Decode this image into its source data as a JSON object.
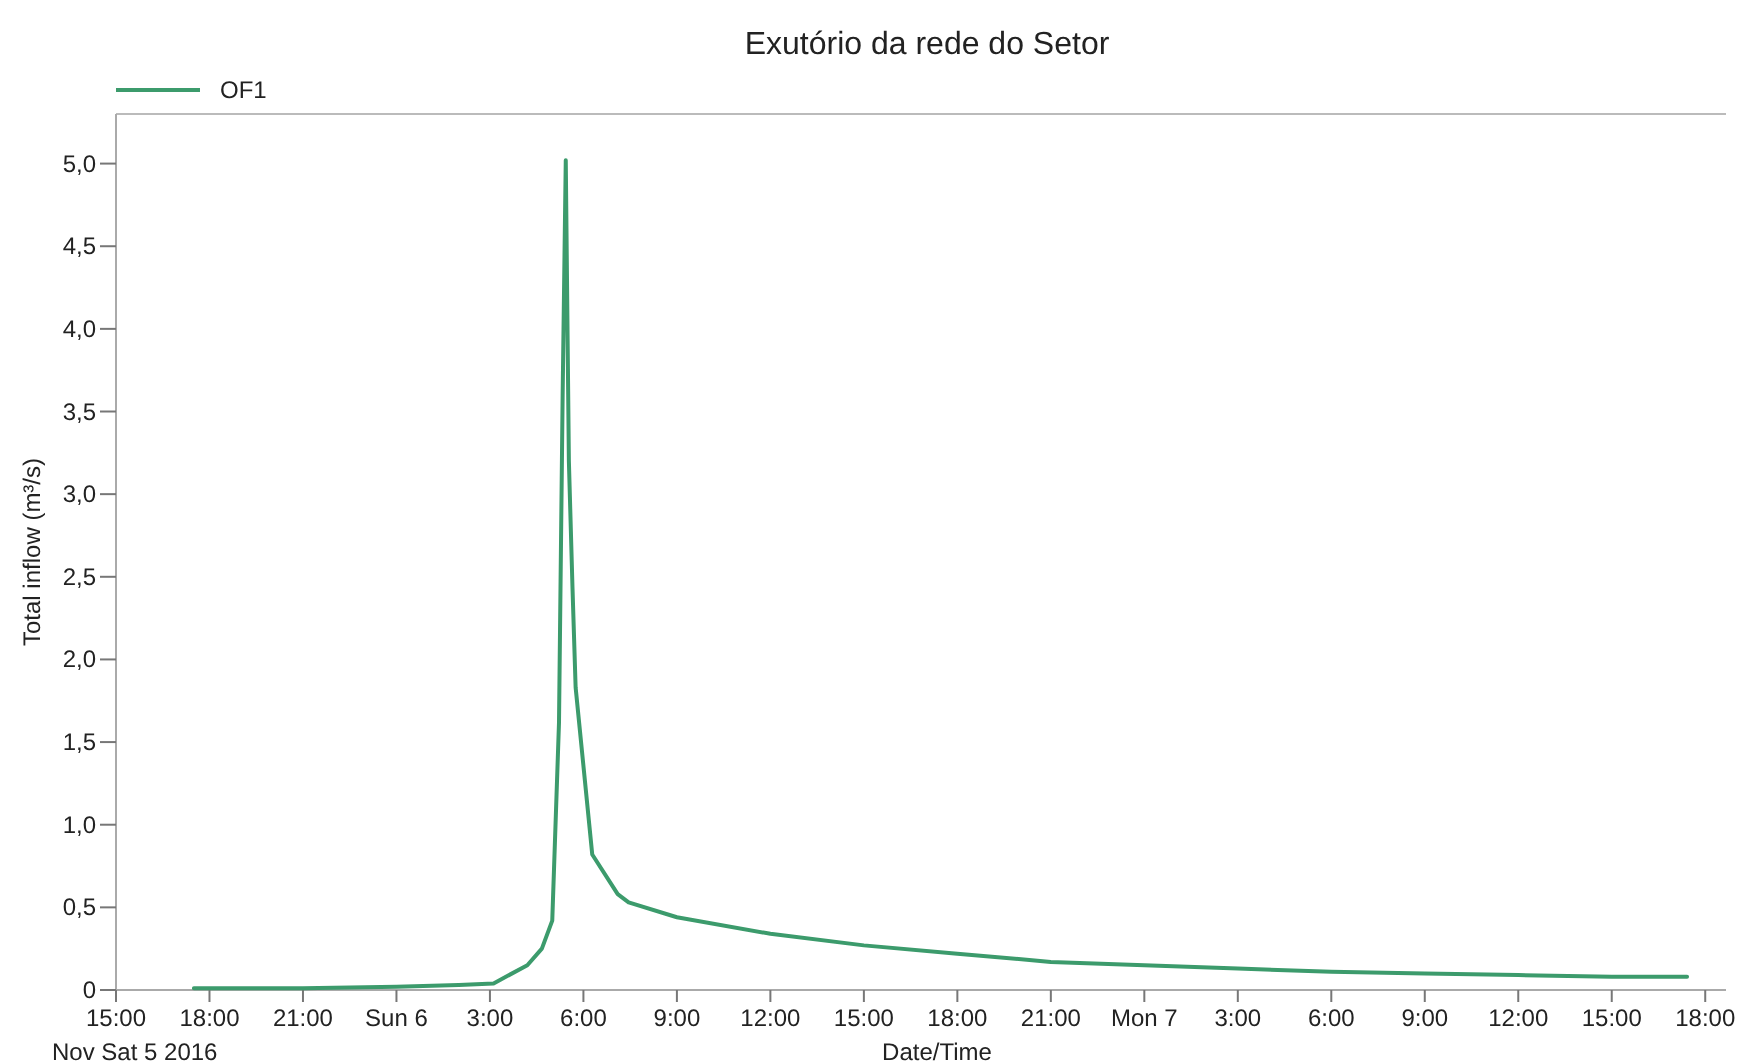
{
  "chart_data": {
    "type": "line",
    "title": "Exutório da rede do Setor",
    "xlabel": "Date/Time",
    "ylabel": "Total inflow (m³/s)",
    "annotations": [
      "Nov Sat 5 2016"
    ],
    "legend": "top left",
    "grid": false,
    "marker": "none",
    "line_style": "solid",
    "xlim": [
      "2016-11-05T15:00",
      "2016-11-07T18:40"
    ],
    "xticks": [
      {
        "value": "2016-11-05T15:00",
        "label": "15:00"
      },
      {
        "value": "2016-11-05T18:00",
        "label": "18:00"
      },
      {
        "value": "2016-11-05T21:00",
        "label": "21:00"
      },
      {
        "value": "2016-11-06T00:00",
        "label": "Sun 6"
      },
      {
        "value": "2016-11-06T03:00",
        "label": "3:00"
      },
      {
        "value": "2016-11-06T06:00",
        "label": "6:00"
      },
      {
        "value": "2016-11-06T09:00",
        "label": "9:00"
      },
      {
        "value": "2016-11-06T12:00",
        "label": "12:00"
      },
      {
        "value": "2016-11-06T15:00",
        "label": "15:00"
      },
      {
        "value": "2016-11-06T18:00",
        "label": "18:00"
      },
      {
        "value": "2016-11-06T21:00",
        "label": "21:00"
      },
      {
        "value": "2016-11-07T00:00",
        "label": "Mon 7"
      },
      {
        "value": "2016-11-07T03:00",
        "label": "3:00"
      },
      {
        "value": "2016-11-07T06:00",
        "label": "6:00"
      },
      {
        "value": "2016-11-07T09:00",
        "label": "9:00"
      },
      {
        "value": "2016-11-07T12:00",
        "label": "12:00"
      },
      {
        "value": "2016-11-07T15:00",
        "label": "15:00"
      },
      {
        "value": "2016-11-07T18:00",
        "label": "18:00"
      }
    ],
    "ylim": [
      0,
      5.3
    ],
    "yticks": [
      0,
      {
        "value": 0.5,
        "label": "0,5"
      },
      {
        "value": 1,
        "label": "1,0"
      },
      {
        "value": 1.5,
        "label": "1,5"
      },
      {
        "value": 2,
        "label": "2,0"
      },
      {
        "value": 2.5,
        "label": "2,5"
      },
      {
        "value": 3,
        "label": "3,0"
      },
      {
        "value": 3.5,
        "label": "3,5"
      },
      {
        "value": 4,
        "label": "4,0"
      },
      {
        "value": 4.5,
        "label": "4,5"
      },
      {
        "value": 5,
        "label": "5,0"
      }
    ],
    "x": [
      "2016-11-05T17:30",
      "2016-11-05T21:00",
      "2016-11-06T00:00",
      "2016-11-06T02:00",
      "2016-11-06T03:07",
      "2016-11-06T04:12",
      "2016-11-06T04:40",
      "2016-11-06T05:00",
      "2016-11-06T05:13",
      "2016-11-06T05:20",
      "2016-11-06T05:26",
      "2016-11-06T05:32",
      "2016-11-06T05:39",
      "2016-11-06T05:45",
      "2016-11-06T06:17",
      "2016-11-06T07:06",
      "2016-11-06T07:27",
      "2016-11-06T09:00",
      "2016-11-06T12:00",
      "2016-11-06T15:00",
      "2016-11-06T18:00",
      "2016-11-06T21:00",
      "2016-11-07T00:00",
      "2016-11-07T03:00",
      "2016-11-07T06:00",
      "2016-11-07T09:00",
      "2016-11-07T12:00",
      "2016-11-07T15:00",
      "2016-11-07T17:25"
    ],
    "series": [
      {
        "name": "OF1",
        "color": "#3c9b6c",
        "values": [
          0.01,
          0.01,
          0.02,
          0.03,
          0.04,
          0.15,
          0.25,
          0.42,
          1.62,
          3.6,
          5.02,
          3.2,
          2.43,
          1.83,
          0.82,
          0.58,
          0.53,
          0.44,
          0.34,
          0.27,
          0.22,
          0.17,
          0.15,
          0.13,
          0.11,
          0.1,
          0.09,
          0.08,
          0.08
        ]
      }
    ]
  }
}
